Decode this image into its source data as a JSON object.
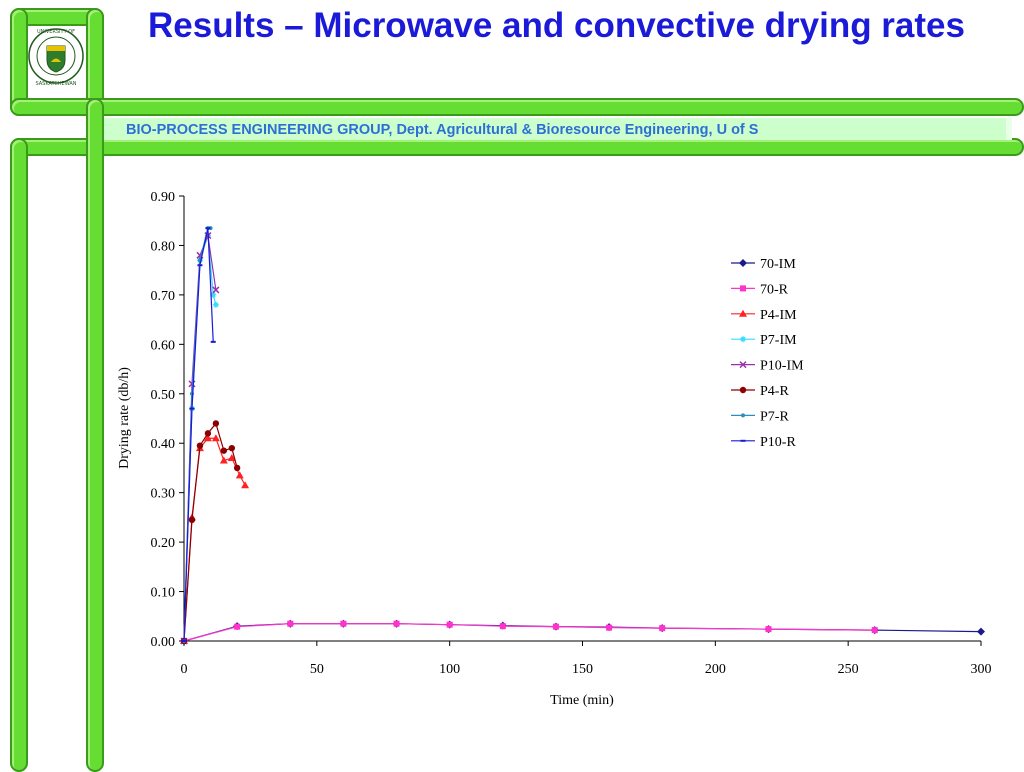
{
  "slide": {
    "title": "Results – Microwave and convective drying rates",
    "banner": "BIO-PROCESS ENGINEERING GROUP, Dept. Agricultural & Bioresource Engineering, U of S",
    "logo_text": "UNIVERSITY OF SASKATCHEWAN",
    "accent_green": "#66dd33",
    "title_color": "#1a1ad8",
    "banner_color": "#2e6fd6"
  },
  "chart_data": {
    "type": "line",
    "xlabel": "Time (min)",
    "ylabel": "Drying rate (db/h)",
    "xlim": [
      0,
      300
    ],
    "ylim": [
      0,
      0.9
    ],
    "xticks": [
      "0",
      "50",
      "100",
      "150",
      "200",
      "250",
      "300"
    ],
    "yticks": [
      "0.00",
      "0.10",
      "0.20",
      "0.30",
      "0.40",
      "0.50",
      "0.60",
      "0.70",
      "0.80",
      "0.90"
    ],
    "grid": false,
    "legend_position": "top-right",
    "series": [
      {
        "name": "70-IM",
        "color": "#1a1a8c",
        "marker": "diamond",
        "x": [
          0,
          20,
          40,
          60,
          80,
          100,
          120,
          140,
          160,
          180,
          220,
          260,
          300
        ],
        "y": [
          0.0,
          0.03,
          0.035,
          0.035,
          0.035,
          0.033,
          0.031,
          0.029,
          0.028,
          0.026,
          0.024,
          0.022,
          0.019
        ]
      },
      {
        "name": "70-R",
        "color": "#ff33cc",
        "marker": "square",
        "x": [
          0,
          20,
          40,
          60,
          80,
          100,
          120,
          140,
          160,
          180,
          220,
          260
        ],
        "y": [
          0.0,
          0.029,
          0.035,
          0.035,
          0.035,
          0.033,
          0.03,
          0.029,
          0.027,
          0.026,
          0.024,
          0.022
        ]
      },
      {
        "name": "P4-IM",
        "color": "#ff2222",
        "marker": "triangle",
        "x": [
          0,
          3,
          6,
          9,
          12,
          15,
          18,
          21,
          23
        ],
        "y": [
          0.0,
          0.25,
          0.39,
          0.41,
          0.41,
          0.365,
          0.37,
          0.335,
          0.315
        ]
      },
      {
        "name": "P7-IM",
        "color": "#33ddff",
        "marker": "star",
        "x": [
          0,
          3,
          6,
          9,
          11,
          12
        ],
        "y": [
          0.0,
          0.47,
          0.77,
          0.82,
          0.7,
          0.68
        ]
      },
      {
        "name": "P10-IM",
        "color": "#9933aa",
        "marker": "x",
        "x": [
          0,
          3,
          6,
          9,
          12
        ],
        "y": [
          0.0,
          0.52,
          0.78,
          0.82,
          0.71
        ]
      },
      {
        "name": "P4-R",
        "color": "#8b0000",
        "marker": "circle",
        "x": [
          0,
          3,
          6,
          9,
          12,
          15,
          18,
          20
        ],
        "y": [
          0.0,
          0.245,
          0.395,
          0.42,
          0.44,
          0.385,
          0.39,
          0.35
        ]
      },
      {
        "name": "P7-R",
        "color": "#2a8fbf",
        "marker": "dot",
        "x": [
          0,
          3,
          6,
          9,
          10
        ],
        "y": [
          0.0,
          0.5,
          0.77,
          0.835,
          0.835
        ]
      },
      {
        "name": "P10-R",
        "color": "#1a1ad8",
        "marker": "dash",
        "x": [
          0,
          3,
          6,
          9,
          11
        ],
        "y": [
          0.0,
          0.47,
          0.76,
          0.835,
          0.605
        ]
      }
    ]
  }
}
